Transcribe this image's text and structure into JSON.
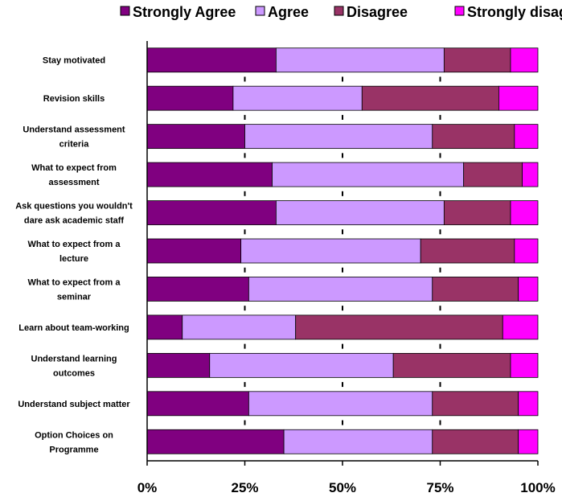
{
  "chart_data": {
    "type": "bar",
    "orientation": "horizontal",
    "stacked": "percent",
    "categories": [
      "Stay motivated",
      "Revision skills",
      "Understand assessment criteria",
      "What to expect from assessment",
      "Ask questions you wouldn't dare ask academic staff",
      "What to expect from a lecture",
      "What to expect from a seminar",
      "Learn about team-working",
      "Understand learning outcomes",
      "Understand subject matter",
      "Option Choices on Programme"
    ],
    "category_lines": [
      [
        "Stay motivated"
      ],
      [
        "Revision skills"
      ],
      [
        "Understand assessment",
        "criteria"
      ],
      [
        "What to expect from",
        "assessment"
      ],
      [
        "Ask questions you wouldn't",
        "dare ask academic staff"
      ],
      [
        "What to expect from a",
        "lecture"
      ],
      [
        "What to expect from a",
        "seminar"
      ],
      [
        "Learn about team-working"
      ],
      [
        "Understand learning",
        "outcomes"
      ],
      [
        "Understand subject matter"
      ],
      [
        "Option Choices on",
        "Programme"
      ]
    ],
    "series": [
      {
        "name": "Strongly Agree",
        "color": "#800080",
        "values": [
          33,
          22,
          25,
          32,
          33,
          24,
          26,
          9,
          16,
          26,
          35
        ]
      },
      {
        "name": "Agree",
        "color": "#cc99ff",
        "values": [
          43,
          33,
          48,
          49,
          43,
          46,
          47,
          29,
          47,
          47,
          38
        ]
      },
      {
        "name": "Disagree",
        "color": "#993366",
        "values": [
          17,
          35,
          21,
          15,
          17,
          24,
          22,
          53,
          30,
          22,
          22
        ]
      },
      {
        "name": "Strongly disagree",
        "color": "#ff00ff",
        "values": [
          7,
          10,
          6,
          4,
          7,
          6,
          5,
          9,
          7,
          5,
          5
        ]
      }
    ],
    "xlim": [
      0,
      100
    ],
    "x_ticks": [
      "0%",
      "25%",
      "50%",
      "75%",
      "100%"
    ],
    "legend_position": "top",
    "grid": false
  }
}
